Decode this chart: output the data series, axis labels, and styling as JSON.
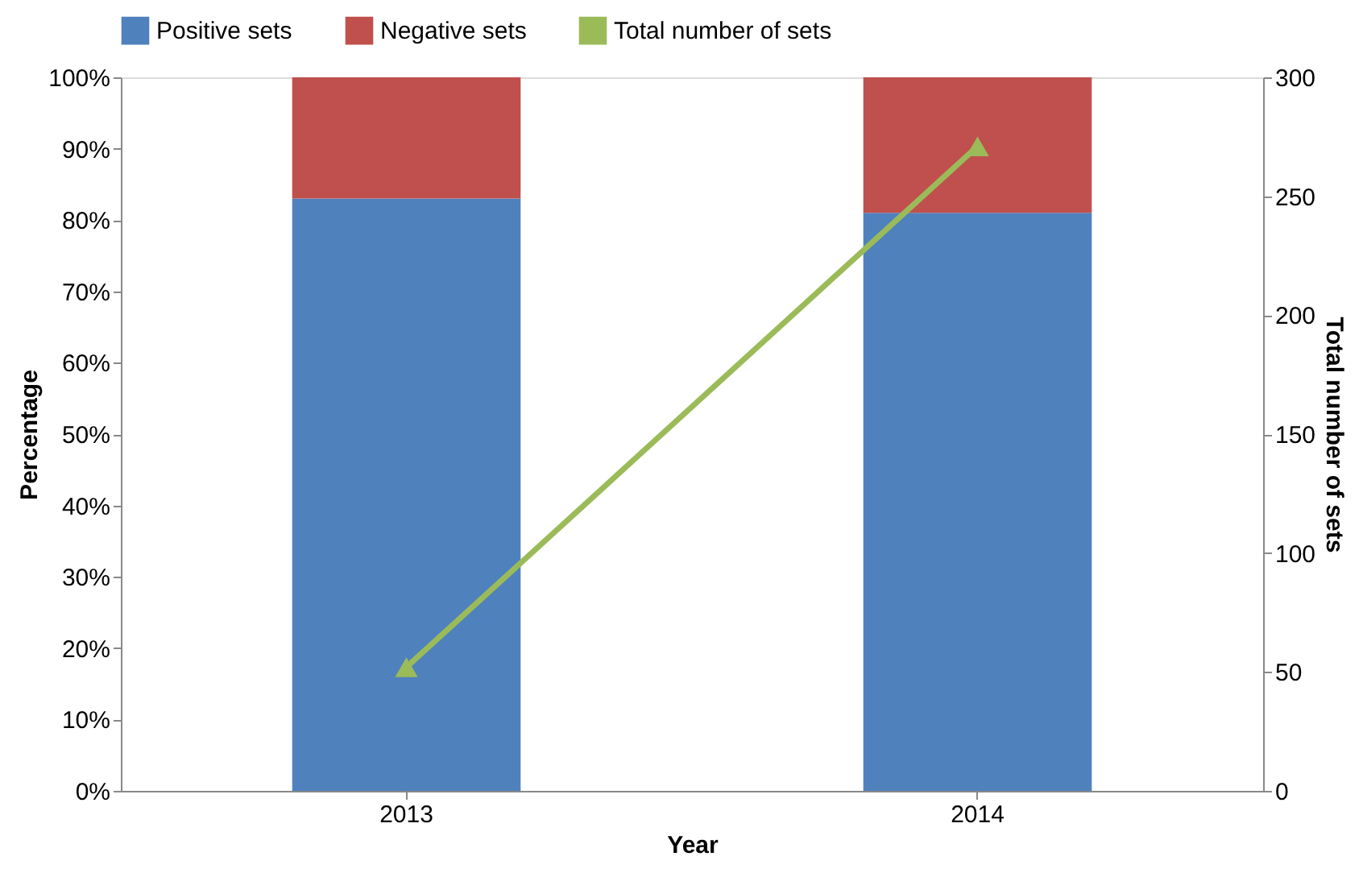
{
  "chart_data": {
    "type": "bar",
    "stacked": true,
    "categories": [
      "2013",
      "2014"
    ],
    "xlabel": "Year",
    "ylabel": "Percentage",
    "y2label": "Total number of sets",
    "series": [
      {
        "name": "Positive sets",
        "color": "#4f81bd",
        "values": [
          83,
          81
        ]
      },
      {
        "name": "Negative sets",
        "color": "#c0504d",
        "values": [
          17,
          19
        ]
      },
      {
        "name": "Total number of sets",
        "color": "#9bbb59",
        "type": "line",
        "axis": "y2",
        "marker": "triangle",
        "values": [
          52,
          271
        ]
      }
    ],
    "ylim": [
      0,
      100
    ],
    "yticks": [
      {
        "value": 0,
        "label": "0%"
      },
      {
        "value": 10,
        "label": "10%"
      },
      {
        "value": 20,
        "label": "20%"
      },
      {
        "value": 30,
        "label": "30%"
      },
      {
        "value": 40,
        "label": "40%"
      },
      {
        "value": 50,
        "label": "50%"
      },
      {
        "value": 60,
        "label": "60%"
      },
      {
        "value": 70,
        "label": "70%"
      },
      {
        "value": 80,
        "label": "80%"
      },
      {
        "value": 90,
        "label": "90%"
      },
      {
        "value": 100,
        "label": "100%"
      }
    ],
    "y2lim": [
      0,
      300
    ],
    "y2ticks": [
      0,
      50,
      100,
      150,
      200,
      250,
      300
    ],
    "grid": false,
    "legend": "top"
  }
}
